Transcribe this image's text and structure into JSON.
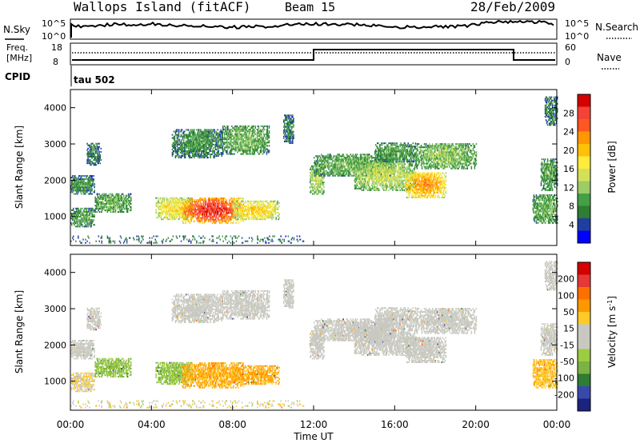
{
  "header": {
    "title_left": "Wallops Island (fitACF)",
    "title_center": "Beam 15",
    "title_right": "28/Feb/2009"
  },
  "noise_panel": {
    "left_label": "N.Sky",
    "right_label": "N.Search",
    "ytick_top": "10^5",
    "ytick_bottom": "10^0"
  },
  "freq_panel": {
    "left_label_1": "Freq.",
    "left_label_2": "[MHz]",
    "left_ticks": [
      "18",
      "8"
    ],
    "right_ticks": [
      "60",
      "0"
    ],
    "right_label": "Nave",
    "cpid_label": "CPID",
    "cpid_value": "tau 502"
  },
  "colors": {
    "power": [
      "#0000ff",
      "#1f3f9f",
      "#2e7d32",
      "#43a047",
      "#9ccc65",
      "#d4e157",
      "#ffeb3b",
      "#ffc107",
      "#ff9800",
      "#ff5722",
      "#f44336",
      "#d50000"
    ],
    "velocity": [
      "#1a237e",
      "#3949ab",
      "#2e7d32",
      "#7cb342",
      "#9ccc3f",
      "#c8c8c0",
      "#c8c8c0",
      "#ffca28",
      "#ff9800",
      "#ff6f00",
      "#e53935",
      "#d50000"
    ]
  },
  "chart_data": [
    {
      "type": "heatmap",
      "name": "power",
      "ylabel": "Slant Range [km]",
      "yticks": [
        1000,
        2000,
        3000,
        4000
      ],
      "ylim": [
        200,
        4500
      ],
      "xlim": [
        0,
        24
      ],
      "colorbar": {
        "label": "Power [dB]",
        "ticks": [
          4,
          8,
          12,
          16,
          20,
          24,
          28
        ],
        "range": [
          0,
          32
        ]
      }
    },
    {
      "type": "heatmap",
      "name": "velocity",
      "ylabel": "Slant Range [km]",
      "yticks": [
        1000,
        2000,
        3000,
        4000
      ],
      "ylim": [
        200,
        4500
      ],
      "xlim": [
        0,
        24
      ],
      "xlabel": "Time UT",
      "xticks": [
        "00:00",
        "04:00",
        "08:00",
        "12:00",
        "16:00",
        "20:00",
        "00:00"
      ],
      "colorbar": {
        "label": "Velocity [m s^-1]",
        "ticks": [
          "200",
          "100",
          "50",
          "15",
          "-15",
          "-50",
          "-100",
          "-200"
        ]
      }
    }
  ]
}
